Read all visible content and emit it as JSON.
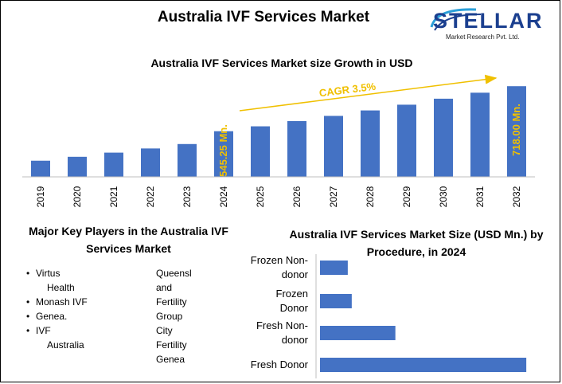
{
  "main_title": "Australia IVF Services Market",
  "logo": {
    "word": "STELLAR",
    "subtitle": "Market Research Pvt. Ltd."
  },
  "colors": {
    "bar": "#4472c4",
    "annotation": "#f0c000",
    "axis": "#bfbfbf"
  },
  "chart_data": [
    {
      "type": "bar",
      "title": "Australia IVF Services Market size Growth in USD",
      "categories": [
        "2019",
        "2020",
        "2021",
        "2022",
        "2023",
        "2024",
        "2025",
        "2026",
        "2027",
        "2028",
        "2029",
        "2030",
        "2031",
        "2032"
      ],
      "values": [
        432,
        447,
        463,
        479,
        496,
        545.25,
        564,
        584,
        604,
        625,
        647,
        670,
        693,
        718
      ],
      "ylim": [
        370,
        740
      ],
      "xlabel": "",
      "ylabel": "",
      "annotations": {
        "cagr": "CAGR 3.5%",
        "start_label": "545.25 Mn.",
        "end_label": "718.00 Mn."
      }
    },
    {
      "type": "bar",
      "orientation": "horizontal",
      "title": "Australia IVF Services Market Size (USD Mn.) by Procedure, in 2024",
      "categories": [
        [
          "Frozen Non-",
          "donor"
        ],
        [
          "Frozen",
          "Donor"
        ],
        [
          "Fresh Non-",
          "donor"
        ],
        [
          "Fresh Donor"
        ]
      ],
      "values": [
        35,
        40,
        95,
        260
      ],
      "xlim": [
        0,
        300
      ],
      "xlabel": "",
      "ylabel": ""
    }
  ],
  "key_players": {
    "title_lines": [
      "Major Key Players in the Australia IVF",
      "Services Market"
    ],
    "column1": [
      {
        "text": "Virtus",
        "style": "bullet"
      },
      {
        "text": "Health",
        "style": "indent"
      },
      {
        "text": "Monash IVF",
        "style": "bullet"
      },
      {
        "text": "Genea.",
        "style": "bullet"
      },
      {
        "text": "IVF",
        "style": "bullet"
      },
      {
        "text": "Australia",
        "style": "indent"
      }
    ],
    "column2": [
      "Queensl",
      "and",
      "Fertility",
      "Group",
      "City",
      "Fertility",
      "Genea"
    ]
  }
}
